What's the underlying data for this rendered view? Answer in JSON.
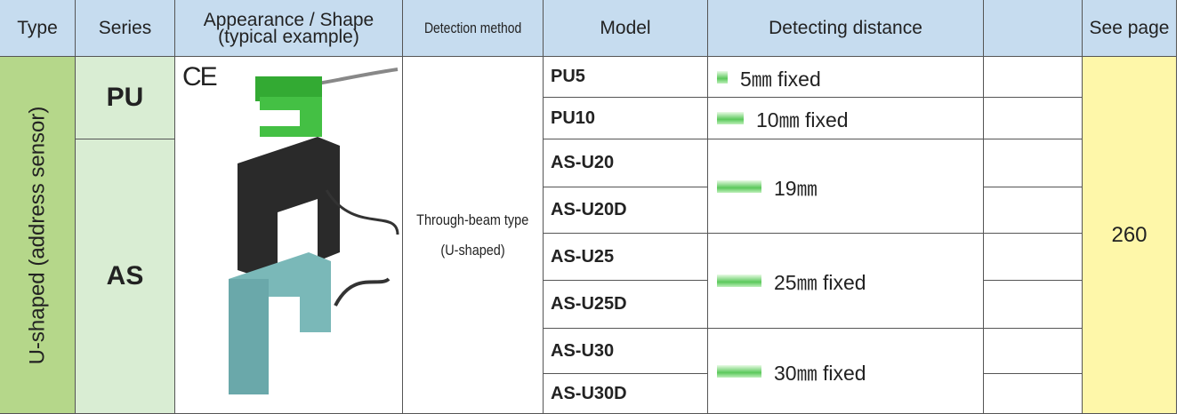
{
  "header": {
    "type": "Type",
    "series": "Series",
    "appearance": [
      "Appearance / Shape",
      "(typical example)"
    ],
    "detection": "Detection method",
    "model": "Model",
    "distance": "Detecting distance",
    "page": "See page"
  },
  "body": {
    "type": "U-shaped (address sensor)",
    "ce_mark": "CE",
    "detection": [
      "Through-beam type",
      "(U-shaped)"
    ],
    "see_page": "260",
    "series": [
      {
        "name": "PU",
        "models": [
          "PU5",
          "PU10"
        ]
      },
      {
        "name": "AS",
        "models": [
          "AS-U20",
          "AS-U20D",
          "AS-U25",
          "AS-U25D",
          "AS-U30",
          "AS-U30D"
        ]
      }
    ],
    "distances": [
      "5㎜ fixed",
      "10㎜ fixed",
      "19㎜",
      "25㎜ fixed",
      "30㎜ fixed"
    ]
  }
}
